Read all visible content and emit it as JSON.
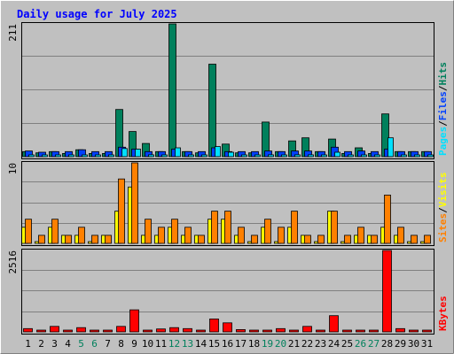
{
  "chart_data": {
    "type": "bar",
    "title": "Daily usage for July 2025",
    "categories": [
      "1",
      "2",
      "3",
      "4",
      "5",
      "6",
      "7",
      "8",
      "9",
      "10",
      "11",
      "12",
      "13",
      "14",
      "15",
      "16",
      "17",
      "18",
      "19",
      "20",
      "21",
      "22",
      "23",
      "24",
      "25",
      "26",
      "27",
      "28",
      "29",
      "30",
      "31"
    ],
    "weekend_days": [
      "5",
      "6",
      "12",
      "13",
      "19",
      "20",
      "26",
      "27"
    ],
    "panels": [
      {
        "id": "hits_files_pages",
        "ymax_label": "211",
        "ymax": 211,
        "right_labels": [
          "Pages",
          "Files",
          "Hits"
        ],
        "series": [
          {
            "name": "Hits",
            "color": "#00805c",
            "values": [
              8,
              6,
              8,
              5,
              11,
              5,
              5,
              75,
              40,
              21,
              8,
              211,
              8,
              6,
              147,
              20,
              6,
              6,
              55,
              8,
              25,
              30,
              8,
              28,
              5,
              14,
              5,
              68,
              8,
              8,
              8
            ]
          },
          {
            "name": "Files",
            "color": "#0040ff",
            "values": [
              9,
              7,
              8,
              8,
              11,
              8,
              8,
              15,
              12,
              8,
              8,
              12,
              8,
              8,
              14,
              8,
              8,
              8,
              9,
              8,
              9,
              9,
              8,
              15,
              8,
              9,
              8,
              12,
              8,
              8,
              8
            ]
          },
          {
            "name": "Pages",
            "color": "#00e0ff",
            "values": [
              2,
              1,
              2,
              1,
              2,
              1,
              1,
              13,
              12,
              3,
              2,
              14,
              2,
              1,
              16,
              7,
              2,
              1,
              3,
              2,
              3,
              3,
              2,
              7,
              1,
              2,
              1,
              30,
              2,
              1,
              1
            ]
          }
        ]
      },
      {
        "id": "visits_sites",
        "ymax_label": "10",
        "ymax": 10,
        "right_labels": [
          "Sites",
          "Visits"
        ],
        "series": [
          {
            "name": "Visits",
            "color": "#ffff00",
            "values": [
              2,
              0,
              2,
              1,
              1,
              0,
              1,
              4,
              7,
              1,
              1,
              2,
              1,
              1,
              3,
              3,
              1,
              0,
              2,
              0,
              2,
              1,
              0,
              4,
              0,
              1,
              1,
              2,
              1,
              0,
              0
            ]
          },
          {
            "name": "Sites",
            "color": "#ff8000",
            "values": [
              3,
              1,
              3,
              1,
              2,
              1,
              1,
              8,
              10,
              3,
              2,
              3,
              2,
              1,
              4,
              4,
              2,
              1,
              3,
              2,
              4,
              1,
              1,
              4,
              1,
              2,
              1,
              6,
              2,
              1,
              1
            ]
          }
        ]
      },
      {
        "id": "kbytes",
        "ymax_label": "2516",
        "ymax": 2516,
        "right_labels": [
          "KBytes"
        ],
        "series": [
          {
            "name": "KBytes",
            "color": "#ff0000",
            "values": [
              100,
              30,
              170,
              30,
              130,
              30,
              30,
              170,
              680,
              30,
              90,
              130,
              100,
              30,
              400,
              280,
              70,
              30,
              30,
              100,
              30,
              170,
              30,
              500,
              30,
              30,
              30,
              2516,
              100,
              30,
              30
            ]
          }
        ]
      }
    ],
    "colors": {
      "background": "#c0c0c0",
      "grid": "#808080",
      "title": "#0000ff",
      "tick_default": "#000000",
      "tick_weekend": "#00805c",
      "separator": "#000000"
    }
  }
}
